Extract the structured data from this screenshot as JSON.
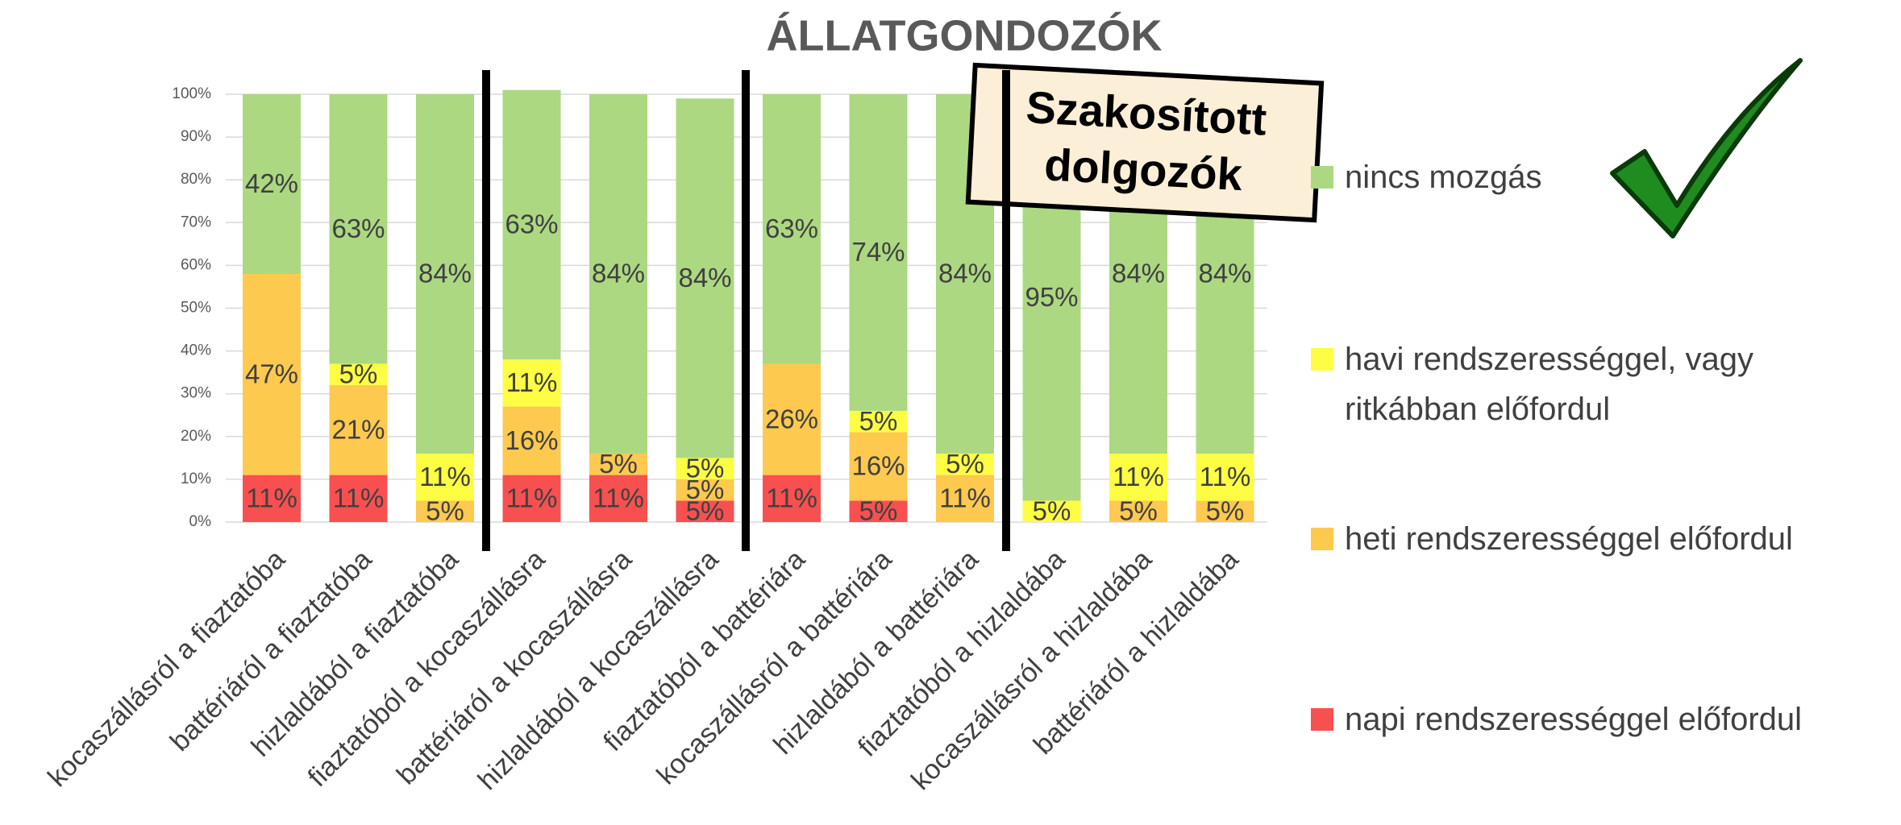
{
  "chart_data": {
    "type": "stacked_bar",
    "title": "ÁLLATGONDOZÓK",
    "categories": [
      "kocaszállásról a fiaztatóba",
      "battériáról a fiaztatóba",
      "hizlaldából a fiaztatóba",
      "fiaztatóból a kocaszállásra",
      "battériáról a kocaszállásra",
      "hizlaldából a kocaszállásra",
      "fiaztatóból a battériára",
      "kocaszállásról a battériára",
      "hizlaldából a battériára",
      "fiaztatóból a hizlaldába",
      "kocaszállásról a hizlaldába",
      "battériáról a hizlaldába"
    ],
    "series": [
      {
        "name": "napi rendszerességgel előfordul",
        "color": "#f85050",
        "values": [
          11,
          11,
          0,
          11,
          11,
          5,
          11,
          5,
          0,
          0,
          0,
          0
        ],
        "value_labels": [
          "11%",
          "11%",
          null,
          "11%",
          "11%",
          "5%",
          "11%",
          "5%",
          null,
          null,
          null,
          null
        ]
      },
      {
        "name": "heti rendszerességgel előfordul",
        "color": "#fdc94f",
        "values": [
          47,
          21,
          5,
          16,
          5,
          5,
          26,
          16,
          11,
          0,
          5,
          5
        ],
        "value_labels": [
          "47%",
          "21%",
          "5%",
          "16%",
          "5%",
          "5%",
          "26%",
          "16%",
          "11%",
          null,
          "5%",
          "5%"
        ]
      },
      {
        "name": "havi rendszerességgel, vagy ritkábban előfordul",
        "color": "#fdfd44",
        "values": [
          0,
          5,
          11,
          11,
          0,
          5,
          0,
          5,
          5,
          5,
          11,
          11
        ],
        "value_labels": [
          null,
          "5%",
          "11%",
          "11%",
          null,
          "5%",
          null,
          "5%",
          "5%",
          "5%",
          "11%",
          "11%"
        ]
      },
      {
        "name": "nincs mozgás",
        "color": "#acd881",
        "values": [
          42,
          63,
          84,
          63,
          84,
          84,
          63,
          74,
          84,
          95,
          84,
          84
        ],
        "value_labels": [
          "42%",
          "63%",
          "84%",
          "63%",
          "84%",
          "84%",
          "63%",
          "74%",
          "84%",
          "95%",
          "84%",
          "84%"
        ]
      }
    ],
    "ylim": [
      0,
      100
    ],
    "yticks": [
      {
        "value": 0,
        "label": "0%"
      },
      {
        "value": 10,
        "label": "10%"
      },
      {
        "value": 20,
        "label": "20%"
      },
      {
        "value": 30,
        "label": "30%"
      },
      {
        "value": 40,
        "label": "40%"
      },
      {
        "value": 50,
        "label": "50%"
      },
      {
        "value": 60,
        "label": "60%"
      },
      {
        "value": 70,
        "label": "70%"
      },
      {
        "value": 80,
        "label": "80%"
      },
      {
        "value": 90,
        "label": "90%"
      },
      {
        "value": 100,
        "label": "100%"
      }
    ],
    "grid": true,
    "legend": "right",
    "annotation": [
      "Szakosított",
      "dolgozók"
    ]
  }
}
